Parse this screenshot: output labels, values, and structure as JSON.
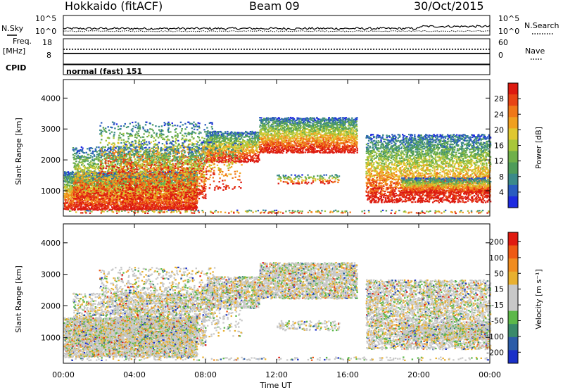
{
  "header": {
    "title": "Hokkaido (fitACF)",
    "beam": "Beam 09",
    "date": "30/Oct/2015"
  },
  "summary_panel": {
    "nsky_label": "N.Sky",
    "nsearch_label": "N.Search",
    "left_ticks": [
      "10^5",
      "10^0"
    ],
    "right_ticks": [
      "10^5",
      "10^0"
    ],
    "freq_label": "Freq.",
    "freq_unit": "[MHz]",
    "freq_ticks": [
      "18",
      "8"
    ],
    "nave_label": "Nave",
    "nave_ticks": [
      "60",
      "0"
    ],
    "cpid_label": "CPID",
    "cpid_value": "normal (fast) 151"
  },
  "chart_data": [
    {
      "type": "heatmap",
      "name": "power-panel",
      "ylabel": "Slant Range [km]",
      "ylim": [
        180,
        4600
      ],
      "y_ticks": [
        1000,
        2000,
        3000,
        4000
      ],
      "colorbar": {
        "label": "Power [dB]",
        "range": [
          0,
          32
        ],
        "ticks": [
          "4",
          "8",
          "12",
          "16",
          "20",
          "24",
          "28"
        ],
        "colors": [
          "#1e2be0",
          "#2a5cc0",
          "#3b8a8a",
          "#4f9c5a",
          "#6fb04a",
          "#a8c63a",
          "#e0c830",
          "#f0a020",
          "#f07818",
          "#e84414",
          "#dd1a10"
        ]
      }
    },
    {
      "type": "heatmap",
      "name": "velocity-panel",
      "ylabel": "Slant Range [km]",
      "ylim": [
        180,
        4600
      ],
      "y_ticks": [
        1000,
        2000,
        3000,
        4000
      ],
      "colorbar": {
        "label": "Velocity [m s⁻¹]",
        "ticks": [
          "200",
          "100",
          "50",
          "15",
          "-15",
          "-50",
          "-100",
          "-200"
        ],
        "colors": [
          "#1a30c8",
          "#2c5ca8",
          "#3a8a6a",
          "#5cb84a",
          "#c8c8c8",
          "#c8c8c8",
          "#e8b030",
          "#f08c20",
          "#ee5a14",
          "#e01a10"
        ]
      }
    }
  ],
  "time_axis": {
    "xlabel": "Time UT",
    "ticks": [
      "00:00",
      "04:00",
      "08:00",
      "12:00",
      "16:00",
      "20:00",
      "00:00"
    ]
  }
}
